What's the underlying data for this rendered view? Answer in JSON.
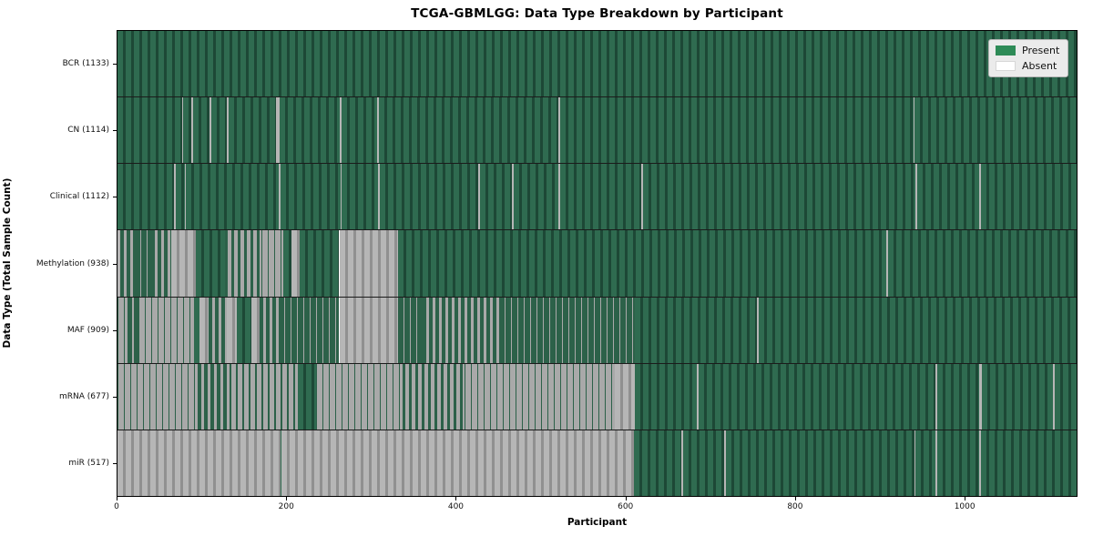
{
  "figure": {
    "title": "TCGA-GBMLGG: Data Type Breakdown by Participant",
    "x_label": "Participant",
    "y_label": "Data Type (Total Sample Count)"
  },
  "legend": {
    "present_label": "Present",
    "absent_label": "Absent",
    "present_color": "#2e8b57",
    "absent_color": "#ffffff"
  },
  "chart_data": {
    "type": "heatmap",
    "title": "TCGA-GBMLGG: Data Type Breakdown by Participant",
    "xlabel": "Participant",
    "ylabel": "Data Type (Total Sample Count)",
    "legend": [
      "Present",
      "Absent"
    ],
    "legend_position": "upper right",
    "grid": false,
    "x_ticks": [
      0,
      200,
      400,
      600,
      800,
      1000
    ],
    "x_max": 1133,
    "colors": {
      "present": "#2e8b57",
      "present_light": "#2f6b50",
      "present_dark": "#1d4836",
      "present_flat": "#2c6149",
      "absent": "#ffffff",
      "absent_light": "#b6b6b6",
      "absent_dark": "#909090",
      "absent_flat": "#a9a9a9"
    },
    "rows": [
      {
        "name": "BCR",
        "label": "BCR (1133)",
        "count": 1133,
        "segments": [
          [
            0,
            1133,
            1
          ]
        ]
      },
      {
        "name": "CN",
        "label": "CN (1114)",
        "count": 1114,
        "segments": [
          [
            0,
            76,
            1
          ],
          [
            76,
            78,
            0
          ],
          [
            78,
            87,
            1
          ],
          [
            87,
            89,
            0
          ],
          [
            89,
            109,
            1
          ],
          [
            109,
            111,
            0
          ],
          [
            111,
            129,
            1
          ],
          [
            129,
            131,
            0
          ],
          [
            131,
            187,
            1
          ],
          [
            187,
            192,
            0
          ],
          [
            192,
            263,
            1
          ],
          [
            263,
            265,
            0
          ],
          [
            265,
            307,
            1
          ],
          [
            307,
            309,
            0
          ],
          [
            309,
            521,
            1
          ],
          [
            521,
            523,
            0
          ],
          [
            523,
            940,
            1
          ],
          [
            940,
            942,
            0
          ],
          [
            942,
            1133,
            1
          ]
        ]
      },
      {
        "name": "Clinical",
        "label": "Clinical (1112)",
        "count": 1112,
        "segments": [
          [
            0,
            67,
            1
          ],
          [
            67,
            69,
            0
          ],
          [
            69,
            80,
            1
          ],
          [
            80,
            81,
            0
          ],
          [
            81,
            190,
            1
          ],
          [
            190,
            193,
            0
          ],
          [
            193,
            264,
            1
          ],
          [
            264,
            265,
            0
          ],
          [
            265,
            308,
            1
          ],
          [
            308,
            310,
            0
          ],
          [
            310,
            426,
            1
          ],
          [
            426,
            428,
            0
          ],
          [
            428,
            466,
            1
          ],
          [
            466,
            468,
            0
          ],
          [
            468,
            521,
            1
          ],
          [
            521,
            523,
            0
          ],
          [
            523,
            619,
            1
          ],
          [
            619,
            621,
            0
          ],
          [
            621,
            943,
            1
          ],
          [
            943,
            945,
            0
          ],
          [
            945,
            1018,
            1
          ],
          [
            1018,
            1020,
            0
          ],
          [
            1020,
            1133,
            1
          ]
        ]
      },
      {
        "name": "Methylation",
        "label": "Methylation (938)",
        "count": 938,
        "segments": [
          [
            0,
            3,
            0
          ],
          [
            3,
            20,
            0.5
          ],
          [
            20,
            40,
            0.85
          ],
          [
            40,
            64,
            0.5
          ],
          [
            64,
            93,
            0
          ],
          [
            93,
            127,
            1
          ],
          [
            127,
            170,
            0.45
          ],
          [
            170,
            196,
            0.12
          ],
          [
            196,
            205,
            1
          ],
          [
            205,
            215,
            0
          ],
          [
            215,
            262,
            1
          ],
          [
            262,
            331,
            0
          ],
          [
            331,
            908,
            1
          ],
          [
            908,
            910,
            0
          ],
          [
            910,
            1133,
            1
          ]
        ]
      },
      {
        "name": "MAF",
        "label": "MAF (909)",
        "count": 909,
        "segments": [
          [
            0,
            12,
            0.15
          ],
          [
            12,
            25,
            0.7
          ],
          [
            25,
            90,
            0.18
          ],
          [
            90,
            97,
            1
          ],
          [
            97,
            108,
            0
          ],
          [
            108,
            129,
            0.5
          ],
          [
            129,
            141,
            0
          ],
          [
            141,
            158,
            1
          ],
          [
            158,
            168,
            0
          ],
          [
            168,
            190,
            0.5
          ],
          [
            190,
            262,
            0.85
          ],
          [
            262,
            331,
            0
          ],
          [
            331,
            360,
            0.8
          ],
          [
            360,
            451,
            0.55
          ],
          [
            451,
            611,
            0.85
          ],
          [
            611,
            755,
            1
          ],
          [
            755,
            757,
            0
          ],
          [
            757,
            1133,
            1
          ]
        ]
      },
      {
        "name": "mRNA",
        "label": "mRNA (677)",
        "count": 677,
        "segments": [
          [
            0,
            95,
            0.15
          ],
          [
            95,
            132,
            0.5
          ],
          [
            132,
            213,
            0.25
          ],
          [
            213,
            235,
            1
          ],
          [
            235,
            337,
            0.2
          ],
          [
            337,
            410,
            0.45
          ],
          [
            410,
            587,
            0.2
          ],
          [
            587,
            611,
            0
          ],
          [
            611,
            684,
            1
          ],
          [
            684,
            686,
            0
          ],
          [
            686,
            966,
            1
          ],
          [
            966,
            968,
            0
          ],
          [
            968,
            1018,
            1
          ],
          [
            1018,
            1021,
            0
          ],
          [
            1021,
            1105,
            1
          ],
          [
            1105,
            1107,
            0
          ],
          [
            1107,
            1133,
            1
          ]
        ]
      },
      {
        "name": "miR",
        "label": "miR (517)",
        "count": 517,
        "segments": [
          [
            0,
            193,
            0
          ],
          [
            193,
            194,
            1
          ],
          [
            194,
            610,
            0
          ],
          [
            610,
            666,
            1
          ],
          [
            666,
            668,
            0
          ],
          [
            668,
            717,
            1
          ],
          [
            717,
            719,
            0
          ],
          [
            719,
            941,
            1
          ],
          [
            941,
            943,
            0
          ],
          [
            943,
            966,
            1
          ],
          [
            966,
            968,
            0
          ],
          [
            968,
            1018,
            1
          ],
          [
            1018,
            1020,
            0
          ],
          [
            1020,
            1133,
            1
          ]
        ]
      }
    ]
  }
}
